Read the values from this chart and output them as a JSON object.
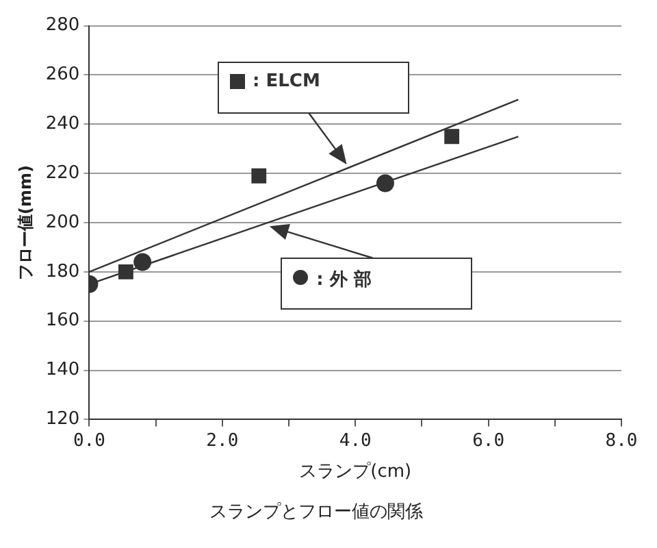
{
  "chart_data": {
    "type": "scatter",
    "title": "スランプとフロー値の関係",
    "xlabel": "スランプ(cm)",
    "ylabel": "フロー値(mm)",
    "series": [
      {
        "name": ": ELCM",
        "marker": "square",
        "color": "#333333",
        "x": [
          0.55,
          2.55,
          5.45
        ],
        "values": [
          180,
          219,
          235
        ]
      },
      {
        "name": ": 外 部",
        "marker": "circle",
        "color": "#333333",
        "x": [
          0,
          0.8,
          4.45
        ],
        "values": [
          175,
          184,
          216
        ]
      },
      {
        "type": "line",
        "color": "#333333",
        "x": [
          0,
          6.45
        ],
        "values": [
          180,
          250
        ]
      },
      {
        "type": "line",
        "color": "#333333",
        "x": [
          0,
          6.45
        ],
        "values": [
          175,
          235
        ]
      }
    ],
    "xlim": [
      0,
      8
    ],
    "xticks": [
      {
        "value": 0,
        "label": "0.0"
      },
      {
        "value": 1,
        "label": null
      },
      {
        "value": 2,
        "label": "2.0"
      },
      {
        "value": 3,
        "label": null
      },
      {
        "value": 4,
        "label": "4.0"
      },
      {
        "value": 5,
        "label": null
      },
      {
        "value": 6,
        "label": "6.0"
      },
      {
        "value": 7,
        "label": null
      },
      {
        "value": 8,
        "label": "8.0"
      }
    ],
    "ylim": [
      120,
      280
    ],
    "yticks": [
      120,
      140,
      160,
      180,
      200,
      220,
      240,
      260,
      280
    ],
    "grid": "y",
    "legend": "top",
    "line_style": "solid"
  }
}
